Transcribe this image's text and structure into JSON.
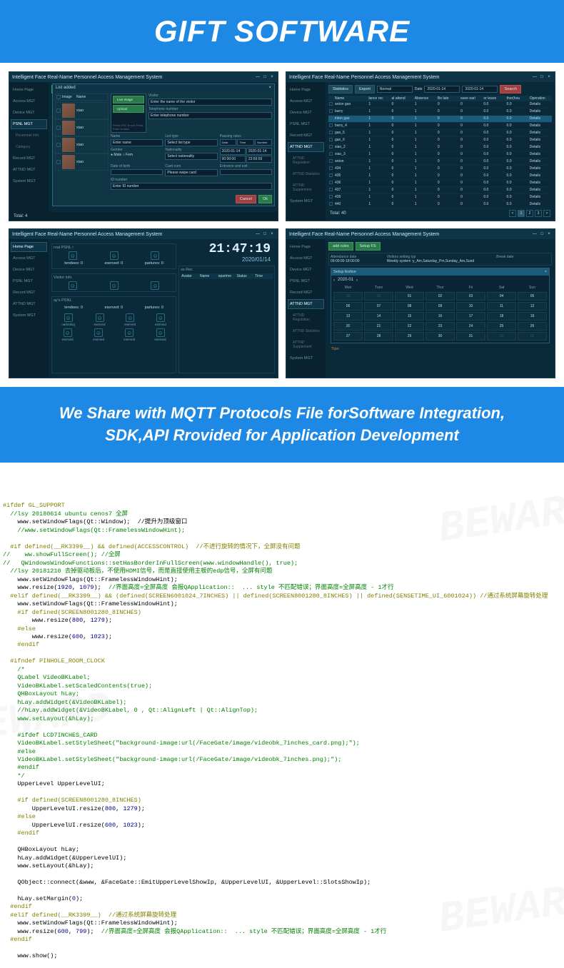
{
  "banners": {
    "top": "GIFT SOFTWARE",
    "mid_line1": "We Share with MQTT Protocols File forSoftware Integration,",
    "mid_line2": "SDK,API Rrovided for Application Development"
  },
  "app_title": "Intelligent Face Real-Name Personnel Access Management System",
  "win_controls": {
    "min": "—",
    "max": "□",
    "close": "×"
  },
  "sidebar_items": [
    {
      "label": "Home Page",
      "key": "home"
    },
    {
      "label": "Access MGT",
      "key": "access"
    },
    {
      "label": "Device MGT",
      "key": "device"
    },
    {
      "label": "PSNL MGT",
      "key": "psnl"
    },
    {
      "label": "Record MGT",
      "key": "record"
    },
    {
      "label": "ATTND MGT",
      "key": "attnd"
    },
    {
      "label": "System MGT",
      "key": "system"
    }
  ],
  "psnl_sub": [
    "Personnel Info",
    "Category"
  ],
  "attnd_sub": [
    "ATTND Regulation",
    "ATTND Statistics",
    "ATTND Supplement"
  ],
  "win1": {
    "dialog_title": "List added",
    "toolbar": {
      "add": "Add list",
      "export": "Export"
    },
    "list_header": {
      "chk": "",
      "img": "Image",
      "name": "Name"
    },
    "persons": [
      {
        "name": "xiao"
      },
      {
        "name": "xiao"
      },
      {
        "name": "xiao"
      },
      {
        "name": "xiao"
      }
    ],
    "cam_btns": {
      "live": "Live Image",
      "upload": "Upload"
    },
    "form": {
      "visitor_lbl": "Visitor",
      "visitor_ph": "Enter the name of the visitor",
      "esc_note": "Press ESC to exit\nPress Enter to take",
      "phone_lbl": "Telephone number",
      "phone_ph": "Enter telephone number",
      "name_lbl": "Name",
      "name_ph": "Enter name",
      "list_lbl": "List type",
      "list_val": "Select list type",
      "pass_lbl": "Passing rules",
      "pass_cols": [
        "Data",
        "Time",
        "Number"
      ],
      "gender_lbl": "Gender",
      "gender_val": "● Male ○ Fem",
      "nat_lbl": "Nationality",
      "nat_val": "Select nationality",
      "date1": "2020-01-14",
      "date2": "2020-01-14",
      "time1": "00:00:00",
      "time2": "23:59:59",
      "dob_lbl": "Date of birth",
      "card_lbl": "Card num",
      "card_ph": "Please swipe card",
      "ent_lbl": "Entrance and exit",
      "id_lbl": "ID number",
      "id_ph": "Enter ID number"
    },
    "footer": {
      "cancel": "Cancel",
      "ok": "Ok"
    },
    "total": "Total:  4"
  },
  "win2": {
    "toolbar": {
      "stats": "Statistics",
      "export": "Export",
      "normal": "Normal",
      "date_lbl": "Date",
      "d1": "2020-01-14",
      "d2": "2020-01-14",
      "search": "Search"
    },
    "cols": [
      "",
      "Name",
      "lance rec",
      "al attend",
      "Absence",
      "Be late",
      "eave earl",
      "or leave",
      "ther(hou",
      "Operation"
    ],
    "rows": [
      [
        "anton gao",
        "1",
        "0",
        "1",
        "0",
        "0",
        "0.0",
        "0.0",
        "Details"
      ],
      [
        "barry",
        "1",
        "0",
        "1",
        "0",
        "0",
        "0.0",
        "0.0",
        "Details"
      ],
      [
        "inton gao",
        "1",
        "0",
        "1",
        "0",
        "0",
        "0.0",
        "0.0",
        "Details"
      ],
      [
        "barry_4",
        "1",
        "0",
        "1",
        "0",
        "0",
        "0.0",
        "0.0",
        "Details"
      ],
      [
        "gao_5",
        "1",
        "0",
        "1",
        "0",
        "0",
        "0.0",
        "0.0",
        "Details"
      ],
      [
        "gao_6",
        "1",
        "0",
        "1",
        "0",
        "0",
        "0.0",
        "0.0",
        "Details"
      ],
      [
        "xiao_2",
        "1",
        "0",
        "1",
        "0",
        "0",
        "0.0",
        "0.0",
        "Details"
      ],
      [
        "xiao_3",
        "1",
        "0",
        "1",
        "0",
        "0",
        "0.0",
        "0.0",
        "Details"
      ],
      [
        "anton",
        "1",
        "0",
        "1",
        "0",
        "0",
        "0.0",
        "0.0",
        "Details"
      ],
      [
        "434",
        "1",
        "0",
        "1",
        "0",
        "0",
        "0.0",
        "0.0",
        "Details"
      ],
      [
        "435",
        "1",
        "0",
        "1",
        "0",
        "0",
        "0.0",
        "0.0",
        "Details"
      ],
      [
        "436",
        "1",
        "0",
        "1",
        "0",
        "0",
        "0.0",
        "0.0",
        "Details"
      ],
      [
        "437",
        "1",
        "0",
        "1",
        "0",
        "0",
        "0.0",
        "0.0",
        "Details"
      ],
      [
        "439",
        "1",
        "0",
        "1",
        "0",
        "0",
        "0.0",
        "0.0",
        "Details"
      ],
      [
        "440",
        "1",
        "0",
        "1",
        "0",
        "0",
        "0.0",
        "0.0",
        "Details"
      ]
    ],
    "total": "Total:  40",
    "pages": [
      "<",
      "1",
      "2",
      "3",
      ">"
    ]
  },
  "win3": {
    "psnl_title": "rnal PSNL i",
    "clock": "21:47:19",
    "date": "2020/01/14",
    "counts": [
      "tendees: 0",
      "eserved: 0",
      "partures: 0"
    ],
    "visitor_title": "Visitor info",
    "rec_title": "ss Rec",
    "rec_cols": [
      "Avatar",
      "Name",
      "epartme",
      "Status",
      "Time"
    ],
    "grid_title": "ay's PSNL",
    "counts2": [
      "tendees: 0",
      "eserved: 0",
      "partures: 0"
    ],
    "icons": [
      "narketing",
      "eserved",
      "eserved",
      "eserved",
      "eserved",
      "eserved",
      "eserved",
      "eserved"
    ]
  },
  "win4": {
    "toolbar": {
      "add": "add rules",
      "setup": "Setup FS"
    },
    "sched": {
      "c1_h": "Attendance date",
      "c1_v": "09:00:00-18:00:00",
      "c2_h": "Visitors setting typ",
      "c2_v": "Weekly system :y_Am,Saturday_Pm,Sunday_Am,Sund",
      "c3_h": "Break date",
      "c3_v": ""
    },
    "cal_dialog_title": "Setup festive",
    "cal_month": "2020-01",
    "dow": [
      "Mon",
      "Tues",
      "Wed",
      "Thur",
      "Fri",
      "Sat",
      "Sun"
    ],
    "days": [
      {
        "d": "30",
        "dim": true
      },
      {
        "d": "31",
        "dim": true
      },
      {
        "d": "01"
      },
      {
        "d": "02"
      },
      {
        "d": "03"
      },
      {
        "d": "04"
      },
      {
        "d": "05"
      },
      {
        "d": "06"
      },
      {
        "d": "07"
      },
      {
        "d": "08"
      },
      {
        "d": "09"
      },
      {
        "d": "10"
      },
      {
        "d": "11"
      },
      {
        "d": "12"
      },
      {
        "d": "13"
      },
      {
        "d": "14"
      },
      {
        "d": "15"
      },
      {
        "d": "16"
      },
      {
        "d": "17"
      },
      {
        "d": "18"
      },
      {
        "d": "19"
      },
      {
        "d": "20"
      },
      {
        "d": "21"
      },
      {
        "d": "22"
      },
      {
        "d": "23"
      },
      {
        "d": "24"
      },
      {
        "d": "25"
      },
      {
        "d": "26"
      },
      {
        "d": "27"
      },
      {
        "d": "28"
      },
      {
        "d": "29"
      },
      {
        "d": "30"
      },
      {
        "d": "31"
      },
      {
        "d": "01",
        "dim": true
      },
      {
        "d": "02",
        "dim": true
      }
    ],
    "tips": "Tips:"
  },
  "code": {
    "watermark": "BEWARD",
    "lines": [
      {
        "t": "pp",
        "s": "#ifdef GL_SUPPORT"
      },
      {
        "t": "cm",
        "s": "  //lsy 20180614 ubuntu cenos7 全屏"
      },
      {
        "t": "",
        "s": "    www.setWindowFlags(Qt::Window);  //提升为顶级窗口"
      },
      {
        "t": "cm",
        "s": "    //www.setWindowFlags(Qt::FramelessWindowHint);"
      },
      {
        "t": "",
        "s": ""
      },
      {
        "t": "pp",
        "s": "  #if defined(__RK3399__) && defined(ACCESSCONTROL)  //不进行旋转的情况下，全屏没有问题"
      },
      {
        "t": "cm",
        "s": "//    ww.showFullScreen(); //全屏"
      },
      {
        "t": "cm",
        "s": "//   QWindowsWindowFunctions::setHasBorderInFullScreen(www.windowHandle(), true);"
      },
      {
        "t": "cm",
        "s": "  //lsy 20181210 去掉驱动板后，不使用HDMI信号，而是直接使用主板的edp信号，全屏有问题"
      },
      {
        "t": "",
        "s": "    www.setWindowFlags(Qt::FramelessWindowHint);"
      },
      {
        "t": "mix",
        "s": "    www.resize(<n>1920</n>, <n>1079</n>);  <c>//界面高度=全屏高度 会报QApplication::  ... style 不匹配错误；界面高度=全屏高度 - 1才行</c>"
      },
      {
        "t": "pp",
        "s": "  #elif defined(__RK3399__) && (defined(SCREEN6001024_7INCHES) || defined(SCREEN8001280_8INCHES) || defined(SENSETIME_UI_6001024)) //通过系统屏幕旋转处理"
      },
      {
        "t": "",
        "s": "    www.setWindowFlags(Qt::FramelessWindowHint);"
      },
      {
        "t": "pp",
        "s": "    #if defined(SCREEN8001280_8INCHES)"
      },
      {
        "t": "mix",
        "s": "        www.resize(<n>800</n>, <n>1279</n>);"
      },
      {
        "t": "pp",
        "s": "    #else"
      },
      {
        "t": "mix",
        "s": "        www.resize(<n>600</n>, <n>1023</n>);"
      },
      {
        "t": "pp",
        "s": "    #endif"
      },
      {
        "t": "",
        "s": ""
      },
      {
        "t": "pp",
        "s": "  #ifndef PINHOLE_ROOM_CLOCK"
      },
      {
        "t": "cm",
        "s": "    /*"
      },
      {
        "t": "cm",
        "s": "    QLabel VideoBKLabel;"
      },
      {
        "t": "cm",
        "s": "    VideoBKLabel.setScaledContents(true);"
      },
      {
        "t": "cm",
        "s": "    QHBoxLayout hLay;"
      },
      {
        "t": "cm",
        "s": "    hLay.addWidget(&VideoBKLabel);"
      },
      {
        "t": "cm",
        "s": "    //hLay.addWidget(&VideoBKLabel, 0 , Qt::AlignLeft | Qt::AlignTop);"
      },
      {
        "t": "cm",
        "s": "    www.setLayout(&hLay);"
      },
      {
        "t": "cm",
        "s": ""
      },
      {
        "t": "cm",
        "s": "    #ifdef LCD7INCHES_CARD"
      },
      {
        "t": "cm",
        "s": "    VideoBKLabel.setStyleSheet(\"background-image:url(/FaceGate/image/videobk_7inches_card.png);\");"
      },
      {
        "t": "cm",
        "s": "    #else"
      },
      {
        "t": "cm",
        "s": "    VideoBKLabel.setStyleSheet(\"background-image:url(/FaceGate/image/videobk_7inches.png);\");"
      },
      {
        "t": "cm",
        "s": "    #endif"
      },
      {
        "t": "cm",
        "s": "    */"
      },
      {
        "t": "",
        "s": "    UpperLevel UpperLevelUI;"
      },
      {
        "t": "",
        "s": ""
      },
      {
        "t": "pp",
        "s": "    #if defined(SCREEN8001280_8INCHES)"
      },
      {
        "t": "mix",
        "s": "        UpperLevelUI.resize(<n>800</n>, <n>1279</n>);"
      },
      {
        "t": "pp",
        "s": "    #else"
      },
      {
        "t": "mix",
        "s": "        UpperLevelUI.resize(<n>600</n>, <n>1023</n>);"
      },
      {
        "t": "pp",
        "s": "    #endif"
      },
      {
        "t": "",
        "s": ""
      },
      {
        "t": "",
        "s": "    QHBoxLayout hLay;"
      },
      {
        "t": "",
        "s": "    hLay.addWidget(&UpperLevelUI);"
      },
      {
        "t": "",
        "s": "    www.setLayout(&hLay);"
      },
      {
        "t": "",
        "s": ""
      },
      {
        "t": "",
        "s": "    QObject::connect(&www, &FaceGate::EmitUpperLevelShowIp, &UpperLevelUI, &UpperLevel::SlotsShowIp);"
      },
      {
        "t": "",
        "s": ""
      },
      {
        "t": "mix",
        "s": "    hLay.setMargin(<n>0</n>);"
      },
      {
        "t": "pp",
        "s": "  #endif"
      },
      {
        "t": "pp",
        "s": "  #elif defined(__RK3399__)  //通过系统屏幕旋转处理"
      },
      {
        "t": "",
        "s": "    www.setWindowFlags(Qt::FramelessWindowHint);"
      },
      {
        "t": "mix",
        "s": "    www.resize(<n>600</n>, <n>799</n>);  <c>//界面高度=全屏高度 会报QApplication::  ... style 不匹配错误；界面高度=全屏高度 - 1才行</c>"
      },
      {
        "t": "pp",
        "s": "  #endif"
      },
      {
        "t": "",
        "s": ""
      },
      {
        "t": "",
        "s": "    www.show();"
      }
    ]
  }
}
